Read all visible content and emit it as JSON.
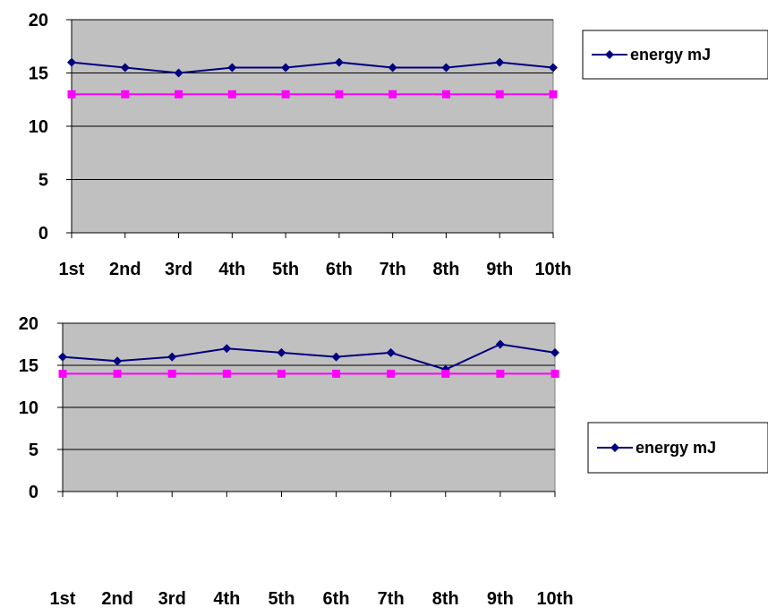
{
  "chart_data": [
    {
      "type": "line",
      "categories": [
        "1st",
        "2nd",
        "3rd",
        "4th",
        "5th",
        "6th",
        "7th",
        "8th",
        "9th",
        "10th"
      ],
      "ylim": [
        0,
        20
      ],
      "yticks": [
        0,
        5,
        10,
        15,
        20
      ],
      "grid": true,
      "legend_position": "right",
      "plot_background": "#c0c0c0",
      "series": [
        {
          "name": "energy mJ",
          "color": "#000080",
          "marker": "diamond",
          "values": [
            16,
            15.5,
            15,
            15.5,
            15.5,
            16,
            15.5,
            15.5,
            16,
            15.5
          ]
        },
        {
          "color": "#ff00ff",
          "marker": "square",
          "values": [
            13,
            13,
            13,
            13,
            13,
            13,
            13,
            13,
            13,
            13
          ]
        }
      ]
    },
    {
      "type": "line",
      "categories": [
        "1st",
        "2nd",
        "3rd",
        "4th",
        "5th",
        "6th",
        "7th",
        "8th",
        "9th",
        "10th"
      ],
      "ylim": [
        0,
        20
      ],
      "yticks": [
        0,
        5,
        10,
        15,
        20
      ],
      "grid": true,
      "legend_position": "right",
      "plot_background": "#c0c0c0",
      "series": [
        {
          "name": "energy mJ",
          "color": "#000080",
          "marker": "diamond",
          "values": [
            16,
            15.5,
            16,
            17,
            16.5,
            16,
            16.5,
            14.5,
            17.5,
            16.5
          ]
        },
        {
          "color": "#ff00ff",
          "marker": "square",
          "values": [
            14,
            14,
            14,
            14,
            14,
            14,
            14,
            14,
            14,
            14
          ]
        }
      ]
    }
  ]
}
